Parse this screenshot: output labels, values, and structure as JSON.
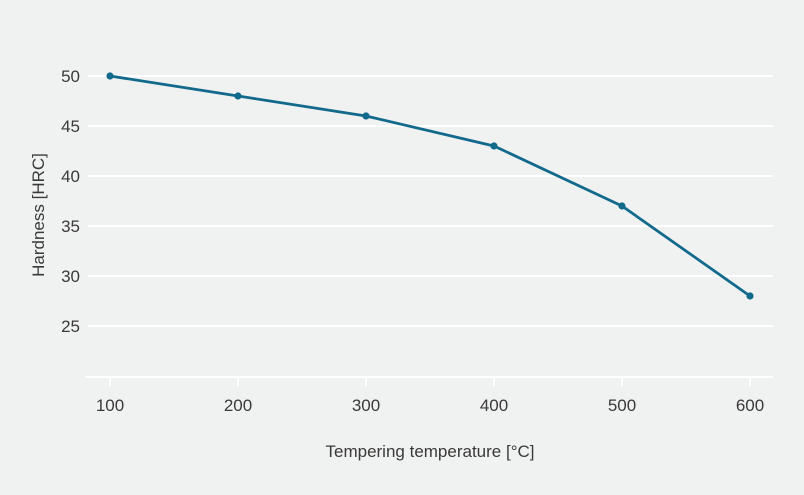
{
  "chart_data": {
    "type": "line",
    "title": "",
    "xlabel": "Tempering temperature [°C]",
    "ylabel": "Hardness [HRC]",
    "x": [
      100,
      200,
      300,
      400,
      500,
      600
    ],
    "series": [
      {
        "name": "Hardness",
        "values": [
          50,
          48,
          46,
          43,
          37,
          28
        ]
      }
    ],
    "xticks": [
      "100",
      "200",
      "300",
      "400",
      "500",
      "600"
    ],
    "yticks": [
      "25",
      "30",
      "35",
      "40",
      "45",
      "50"
    ],
    "xlim": [
      83,
      618
    ],
    "ylim": [
      20,
      53.5
    ],
    "grid": "horizontal",
    "legend": "none",
    "markers": true,
    "colors": {
      "line": "#11698c",
      "marker": "#11698c",
      "background": "#f0f1f1",
      "gridline": "#ffffff",
      "axis": "#ffffff",
      "text": "#3a3a38"
    }
  }
}
